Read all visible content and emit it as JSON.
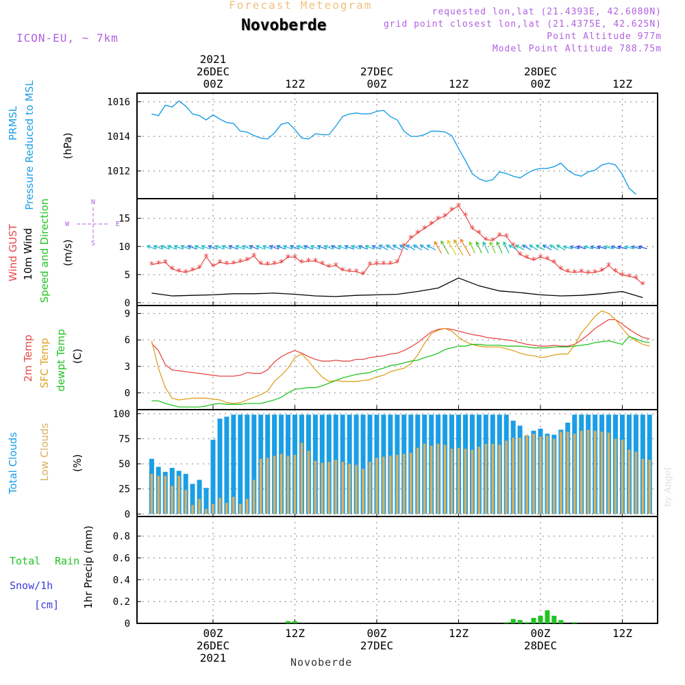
{
  "header": {
    "product": "Forecast Meteogram",
    "location": "Novoberde",
    "model": "ICON-EU, ~ 7km",
    "requested": "requested lon,lat (21.4393E, 42.6080N)",
    "gridpoint": "grid point closest lon,lat (21.4375E, 42.625N)",
    "point_alt": "Point Altitude 977m",
    "model_alt": "Model Point Altitude 788.75m",
    "footer": "Novoberde",
    "credit": "by Angel"
  },
  "time_axis": {
    "top": [
      {
        "line1": "2021",
        "line2": "26DEC",
        "line3": "00Z"
      },
      {
        "line1": "",
        "line2": "",
        "line3": "12Z"
      },
      {
        "line1": "",
        "line2": "27DEC",
        "line3": "00Z"
      },
      {
        "line1": "",
        "line2": "",
        "line3": "12Z"
      },
      {
        "line1": "",
        "line2": "28DEC",
        "line3": "00Z"
      },
      {
        "line1": "",
        "line2": "",
        "line3": "12Z"
      }
    ],
    "bottom": [
      {
        "line1": "00Z",
        "line2": "26DEC",
        "line3": "2021"
      },
      {
        "line1": "12Z",
        "line2": "",
        "line3": ""
      },
      {
        "line1": "00Z",
        "line2": "27DEC",
        "line3": ""
      },
      {
        "line1": "12Z",
        "line2": "",
        "line3": ""
      },
      {
        "line1": "00Z",
        "line2": "28DEC",
        "line3": ""
      },
      {
        "line1": "12Z",
        "line2": "",
        "line3": ""
      }
    ]
  },
  "labels": {
    "p1_a": "PRMSL",
    "p1_b": "Pressure Reduced to MSL",
    "p1_unit": "(hPa)",
    "p2_a": "Wind GUST",
    "p2_b": "10m Wind",
    "p2_c": "Speed and Direction",
    "p2_unit": "(m/s)",
    "p2_compass_n": "N",
    "p2_compass_s": "S",
    "p2_compass_w": "W",
    "p2_compass_e": "E",
    "p3_a": "2m Temp",
    "p3_b": "SFC Temp",
    "p3_c": "dewpt Temp",
    "p3_unit": "(C)",
    "p4_a": "Total Clouds",
    "p4_b": "Low Clouds",
    "p4_unit": "(%)",
    "p5_a": "Total",
    "p5_b": "Rain",
    "p5_c": "Snow/1h",
    "p5_d": "[cm]",
    "p5_unit": "1hr Precip (mm)"
  },
  "colors": {
    "pressure": "#1a9ee6",
    "gust": "#e84848",
    "wind": "#000000",
    "t2m": "#e84848",
    "tsfc": "#e0a020",
    "tdew": "#22c422",
    "total_clouds": "#1a9ee6",
    "low_clouds": "#d8b060",
    "rain": "#22c422",
    "snow": "#3a3ae0",
    "label_purple": "#b060e0",
    "title_orange": "#f0c080",
    "grid": "#999999"
  },
  "chart_data": [
    {
      "type": "line",
      "name": "pressure",
      "time_hours_from_26DEC_00Z": [
        -9,
        -8,
        -7,
        -6,
        -5,
        -4,
        -3,
        -2,
        -1,
        0,
        1,
        2,
        3,
        4,
        5,
        6,
        7,
        8,
        9,
        10,
        11,
        12,
        13,
        14,
        15,
        16,
        17,
        18,
        19,
        20,
        21,
        22,
        23,
        24,
        25,
        26,
        27,
        28,
        29,
        30,
        31,
        32,
        33,
        34,
        35,
        36,
        37,
        38,
        39,
        40,
        41,
        42,
        43,
        44,
        45,
        46,
        47,
        48,
        49,
        50,
        51,
        52,
        53,
        54,
        55,
        56,
        57,
        58,
        59,
        60,
        61,
        62
      ],
      "values": [
        1015.3,
        1015.2,
        1015.8,
        1015.7,
        1016.05,
        1015.75,
        1015.3,
        1015.2,
        1014.95,
        1015.25,
        1015.0,
        1014.8,
        1014.75,
        1014.3,
        1014.25,
        1014.05,
        1013.9,
        1013.85,
        1014.2,
        1014.7,
        1014.8,
        1014.4,
        1013.9,
        1013.85,
        1014.15,
        1014.1,
        1014.1,
        1014.6,
        1015.15,
        1015.3,
        1015.35,
        1015.3,
        1015.3,
        1015.45,
        1015.5,
        1015.15,
        1014.95,
        1014.3,
        1014.0,
        1014.0,
        1014.1,
        1014.3,
        1014.3,
        1014.25,
        1014.05,
        1013.3,
        1012.6,
        1011.85,
        1011.55,
        1011.4,
        1011.5,
        1011.95,
        1011.85,
        1011.7,
        1011.6,
        1011.85,
        1012.05,
        1012.15,
        1012.15,
        1012.25,
        1012.45,
        1012.05,
        1011.8,
        1011.7,
        1011.95,
        1012.05,
        1012.35,
        1012.45,
        1012.35,
        1011.8,
        1011.0,
        1010.65
      ],
      "ylabel": "(hPa)",
      "yticks": [
        1012,
        1014,
        1016
      ],
      "ylim": [
        1010.4,
        1016.5
      ]
    },
    {
      "type": "line",
      "name": "wind",
      "time_hours_from_26DEC_00Z": [
        -9,
        -6,
        -3,
        0,
        3,
        6,
        9,
        12,
        15,
        18,
        21,
        24,
        27,
        30,
        33,
        36,
        39,
        42,
        45,
        48,
        51,
        54,
        57,
        60,
        63
      ],
      "gust_hours": [
        -9,
        -8,
        -7,
        -6,
        -5,
        -4,
        -3,
        -2,
        -1,
        0,
        1,
        2,
        3,
        4,
        5,
        6,
        7,
        8,
        9,
        10,
        11,
        12,
        13,
        14,
        15,
        16,
        17,
        18,
        19,
        20,
        21,
        22,
        23,
        24,
        25,
        26,
        27,
        28,
        29,
        30,
        31,
        32,
        33,
        34,
        35,
        36,
        37,
        38,
        39,
        40,
        41,
        42,
        43,
        44,
        45,
        46,
        47,
        48,
        49,
        50,
        51,
        52,
        53,
        54,
        55,
        56,
        57,
        58,
        59,
        60,
        61,
        62,
        63
      ],
      "gust": [
        6.8,
        7.0,
        7.2,
        6.0,
        5.6,
        5.4,
        5.8,
        6.2,
        8.2,
        6.5,
        7.2,
        6.9,
        7.0,
        7.3,
        7.6,
        8.3,
        6.9,
        6.8,
        6.9,
        7.2,
        8.1,
        8.1,
        7.2,
        7.4,
        7.4,
        6.9,
        6.4,
        6.6,
        5.8,
        5.6,
        5.5,
        5.1,
        6.8,
        6.9,
        6.9,
        6.9,
        7.2,
        10.1,
        11.5,
        12.4,
        13.2,
        14.0,
        14.9,
        15.4,
        16.5,
        17.2,
        15.5,
        13.2,
        12.4,
        11.2,
        11.1,
        12.0,
        11.8,
        10.2,
        8.6,
        8.0,
        7.6,
        8.1,
        7.8,
        7.2,
        6.0,
        5.5,
        5.4,
        5.5,
        5.3,
        5.4,
        5.7,
        6.6,
        5.6,
        4.9,
        4.7,
        4.4,
        3.3
      ],
      "speed": [
        1.7,
        1.2,
        1.3,
        1.4,
        1.6,
        1.6,
        1.7,
        1.5,
        1.2,
        1.1,
        1.3,
        1.4,
        1.5,
        2.0,
        2.6,
        4.4,
        3.0,
        2.1,
        1.8,
        1.4,
        1.2,
        1.3,
        1.6,
        2.0,
        0.9
      ],
      "ylabel": "(m/s)",
      "yticks": [
        0,
        5,
        10,
        15
      ],
      "ylim": [
        -0.5,
        18.5
      ]
    },
    {
      "type": "line",
      "name": "temperature",
      "time_hours_from_26DEC_00Z": [
        -9,
        -8,
        -7,
        -6,
        -5,
        -4,
        -3,
        -2,
        -1,
        0,
        1,
        2,
        3,
        4,
        5,
        6,
        7,
        8,
        9,
        10,
        11,
        12,
        13,
        14,
        15,
        16,
        17,
        18,
        19,
        20,
        21,
        22,
        23,
        24,
        25,
        26,
        27,
        28,
        29,
        30,
        31,
        32,
        33,
        34,
        35,
        36,
        37,
        38,
        39,
        40,
        41,
        42,
        43,
        44,
        45,
        46,
        47,
        48,
        49,
        50,
        51,
        52,
        53,
        54,
        55,
        56,
        57,
        58,
        59,
        60,
        61,
        62,
        63,
        64
      ],
      "t2m": [
        5.6,
        4.8,
        3.2,
        2.6,
        2.5,
        2.4,
        2.3,
        2.2,
        2.1,
        2.0,
        1.9,
        1.9,
        1.9,
        2.0,
        2.3,
        2.2,
        2.2,
        2.6,
        3.5,
        4.1,
        4.5,
        4.8,
        4.5,
        4.1,
        3.8,
        3.6,
        3.6,
        3.7,
        3.6,
        3.6,
        3.8,
        3.8,
        4.0,
        4.1,
        4.2,
        4.4,
        4.5,
        4.8,
        5.2,
        5.7,
        6.3,
        6.9,
        7.2,
        7.3,
        7.2,
        7.0,
        6.8,
        6.6,
        6.5,
        6.3,
        6.2,
        6.1,
        6.0,
        5.9,
        5.7,
        5.5,
        5.4,
        5.3,
        5.3,
        5.4,
        5.3,
        5.3,
        5.5,
        6.0,
        6.6,
        7.3,
        7.8,
        8.3,
        8.3,
        7.8,
        7.2,
        6.7,
        6.3,
        6.1
      ],
      "tsfc": [
        5.9,
        2.8,
        0.6,
        -0.6,
        -0.8,
        -0.7,
        -0.6,
        -0.6,
        -0.6,
        -0.7,
        -0.8,
        -1.1,
        -1.2,
        -1.1,
        -0.8,
        -0.5,
        -0.2,
        0.2,
        1.3,
        2.0,
        2.8,
        4.0,
        4.4,
        3.6,
        2.6,
        1.8,
        1.3,
        1.4,
        1.3,
        1.3,
        1.3,
        1.4,
        1.5,
        1.8,
        2.0,
        2.4,
        2.6,
        2.8,
        3.3,
        4.3,
        5.6,
        6.7,
        7.1,
        7.3,
        7.0,
        6.3,
        5.8,
        5.5,
        5.3,
        5.2,
        5.2,
        5.2,
        5.0,
        4.8,
        4.5,
        4.3,
        4.2,
        4.0,
        4.1,
        4.3,
        4.4,
        4.4,
        5.4,
        6.8,
        7.7,
        8.7,
        9.3,
        9.0,
        8.3,
        7.3,
        6.4,
        5.9,
        5.5,
        5.3
      ],
      "tdew": [
        -0.9,
        -0.9,
        -1.2,
        -1.4,
        -1.6,
        -1.6,
        -1.6,
        -1.6,
        -1.5,
        -1.3,
        -1.2,
        -1.3,
        -1.3,
        -1.3,
        -1.2,
        -1.2,
        -1.2,
        -1.0,
        -0.8,
        -0.5,
        0.0,
        0.4,
        0.5,
        0.6,
        0.6,
        0.8,
        1.1,
        1.4,
        1.7,
        1.9,
        2.1,
        2.2,
        2.3,
        2.6,
        2.8,
        3.1,
        3.2,
        3.4,
        3.6,
        3.7,
        4.0,
        4.2,
        4.5,
        4.9,
        5.1,
        5.3,
        5.3,
        5.5,
        5.5,
        5.4,
        5.4,
        5.4,
        5.3,
        5.3,
        5.3,
        5.2,
        5.1,
        5.1,
        5.1,
        5.2,
        5.2,
        5.2,
        5.3,
        5.4,
        5.5,
        5.7,
        5.8,
        5.9,
        5.7,
        5.5,
        6.4,
        6.1,
        5.8,
        5.7
      ],
      "ylabel": "(C)",
      "yticks": [
        0,
        3,
        6,
        9
      ],
      "ylim": [
        -1.9,
        9.9
      ]
    },
    {
      "type": "bar",
      "name": "clouds",
      "time_hours_from_26DEC_00Z": [
        -9,
        -8,
        -7,
        -6,
        -5,
        -4,
        -3,
        -2,
        -1,
        0,
        1,
        2,
        3,
        4,
        5,
        6,
        7,
        8,
        9,
        10,
        11,
        12,
        13,
        14,
        15,
        16,
        17,
        18,
        19,
        20,
        21,
        22,
        23,
        24,
        25,
        26,
        27,
        28,
        29,
        30,
        31,
        32,
        33,
        34,
        35,
        36,
        37,
        38,
        39,
        40,
        41,
        42,
        43,
        44,
        45,
        46,
        47,
        48,
        49,
        50,
        51,
        52,
        53,
        54,
        55,
        56,
        57,
        58,
        59,
        60,
        61,
        62,
        63,
        64
      ],
      "total": [
        55,
        47,
        42,
        46,
        43,
        40,
        30,
        34,
        26,
        74,
        95,
        97,
        99,
        99,
        99,
        99,
        99,
        99,
        99,
        99,
        99,
        99,
        99,
        99,
        99,
        99,
        99,
        99,
        99,
        99,
        99,
        99,
        99,
        99,
        99,
        99,
        99,
        99,
        99,
        99,
        99,
        99,
        99,
        99,
        99,
        99,
        99,
        99,
        99,
        99,
        99,
        99,
        99,
        93,
        88,
        78,
        83,
        85,
        80,
        79,
        84,
        91,
        99,
        99,
        99,
        99,
        99,
        99,
        99,
        99,
        99,
        99,
        99,
        99
      ],
      "low": [
        40,
        38,
        38,
        28,
        38,
        24,
        9,
        15,
        5,
        10,
        16,
        11,
        17,
        10,
        15,
        34,
        55,
        56,
        58,
        60,
        58,
        59,
        71,
        63,
        53,
        51,
        52,
        54,
        52,
        50,
        49,
        45,
        52,
        56,
        57,
        58,
        59,
        60,
        61,
        66,
        70,
        68,
        70,
        69,
        65,
        66,
        65,
        64,
        67,
        70,
        70,
        69,
        73,
        76,
        76,
        79,
        80,
        77,
        78,
        75,
        82,
        82,
        80,
        83,
        84,
        83,
        82,
        81,
        75,
        74,
        64,
        62,
        55,
        54
      ],
      "ylabel": "(%)",
      "yticks": [
        0,
        25,
        50,
        75,
        100
      ],
      "ylim": [
        -2.5,
        104
      ]
    },
    {
      "type": "bar",
      "name": "precipitation",
      "time_hours_from_26DEC_00Z": [
        11,
        12,
        43,
        44,
        45,
        46,
        47,
        48,
        49,
        50,
        51,
        52,
        53
      ],
      "rain": [
        0.02,
        0.02,
        0.01,
        0.04,
        0.03,
        0.01,
        0.05,
        0.07,
        0.12,
        0.07,
        0.03,
        0.0,
        0.01
      ],
      "snow": [],
      "ylabel": "1hr Precip (mm)",
      "yticks": [
        0,
        0.2,
        0.4,
        0.6,
        0.8
      ],
      "ylim": [
        0,
        0.98
      ]
    }
  ]
}
